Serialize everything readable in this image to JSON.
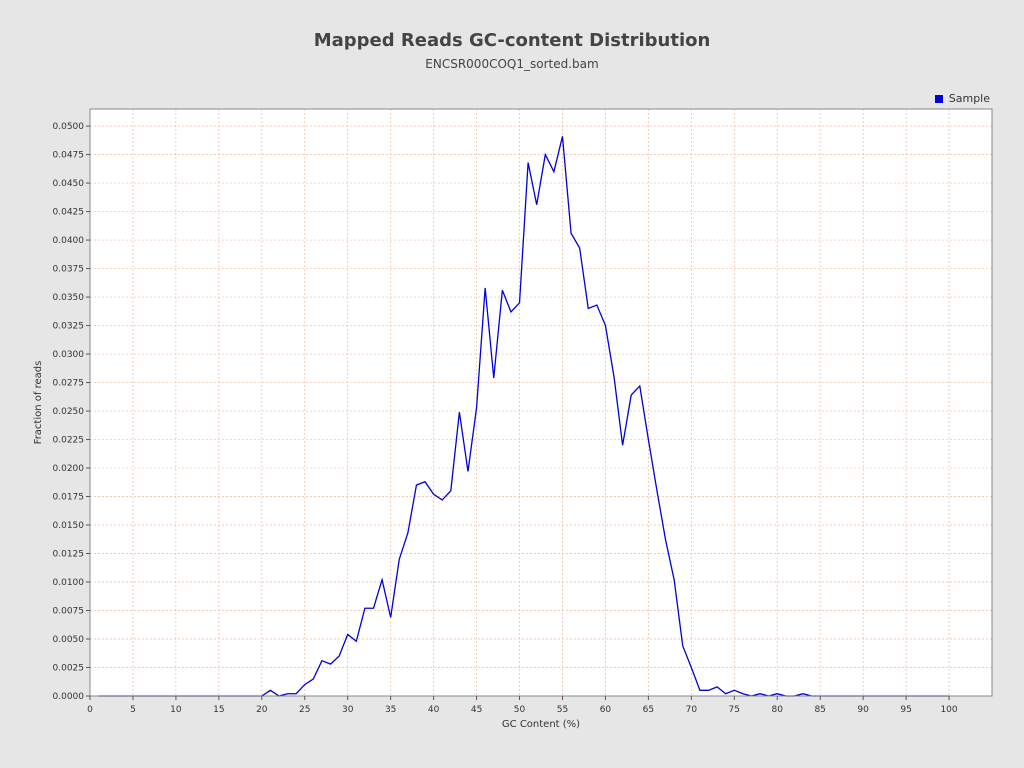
{
  "chart_data": {
    "type": "line",
    "title": "Mapped Reads GC-content Distribution",
    "subtitle": "ENCSR000COQ1_sorted.bam",
    "xlabel": "GC Content (%)",
    "ylabel": "Fraction of reads",
    "xlim": [
      0,
      105
    ],
    "ylim": [
      0,
      0.0515
    ],
    "xticks": [
      0,
      5,
      10,
      15,
      20,
      25,
      30,
      35,
      40,
      45,
      50,
      55,
      60,
      65,
      70,
      75,
      80,
      85,
      90,
      95,
      100
    ],
    "xtick_labels": [
      "0",
      "5",
      "10",
      "15",
      "20",
      "25",
      "30",
      "35",
      "40",
      "45",
      "50",
      "55",
      "60",
      "65",
      "70",
      "75",
      "80",
      "85",
      "90",
      "95",
      "100"
    ],
    "yticks": [
      0,
      0.0025,
      0.005,
      0.0075,
      0.01,
      0.0125,
      0.015,
      0.0175,
      0.02,
      0.0225,
      0.025,
      0.0275,
      0.03,
      0.0325,
      0.035,
      0.0375,
      0.04,
      0.0425,
      0.045,
      0.0475,
      0.05
    ],
    "ytick_labels": [
      "0.0000",
      "0.0025",
      "0.0050",
      "0.0075",
      "0.0100",
      "0.0125",
      "0.0150",
      "0.0175",
      "0.0200",
      "0.0225",
      "0.0250",
      "0.0275",
      "0.0300",
      "0.0325",
      "0.0350",
      "0.0375",
      "0.0400",
      "0.0425",
      "0.0450",
      "0.0475",
      "0.0500"
    ],
    "grid": true,
    "legend_position": "top-right",
    "series": [
      {
        "name": "Sample",
        "color": "#0000dd",
        "x": [
          1,
          2,
          3,
          4,
          5,
          6,
          7,
          8,
          9,
          10,
          11,
          12,
          13,
          14,
          15,
          16,
          17,
          18,
          19,
          20,
          21,
          22,
          23,
          24,
          25,
          26,
          27,
          28,
          29,
          30,
          31,
          32,
          33,
          34,
          35,
          36,
          37,
          38,
          39,
          40,
          41,
          42,
          43,
          44,
          45,
          46,
          47,
          48,
          49,
          50,
          51,
          52,
          53,
          54,
          55,
          56,
          57,
          58,
          59,
          60,
          61,
          62,
          63,
          64,
          65,
          66,
          67,
          68,
          69,
          70,
          71,
          72,
          73,
          74,
          75,
          76,
          77,
          78,
          79,
          80,
          81,
          82,
          83,
          84,
          85,
          86,
          87,
          88,
          89,
          90,
          91,
          92,
          93,
          94,
          95,
          96,
          97,
          98,
          99,
          100
        ],
        "y": [
          0,
          0,
          0,
          0,
          0,
          0,
          0,
          0,
          0,
          0,
          0,
          0,
          0,
          0,
          0,
          0,
          0,
          0,
          0,
          0,
          0.0005,
          0,
          0.0002,
          0.0002,
          0.001,
          0.0015,
          0.0031,
          0.0028,
          0.0035,
          0.0054,
          0.0048,
          0.0077,
          0.0077,
          0.0102,
          0.0069,
          0.012,
          0.0143,
          0.0185,
          0.0188,
          0.0177,
          0.0172,
          0.018,
          0.0249,
          0.0197,
          0.0253,
          0.0358,
          0.0279,
          0.0356,
          0.0337,
          0.0345,
          0.0468,
          0.0431,
          0.0475,
          0.046,
          0.0491,
          0.0406,
          0.0393,
          0.034,
          0.0343,
          0.0325,
          0.028,
          0.022,
          0.0264,
          0.0272,
          0.0225,
          0.018,
          0.0137,
          0.0102,
          0.0044,
          0.0025,
          0.0005,
          0.0005,
          0.0008,
          0.0002,
          0.0005,
          0.0002,
          0,
          0.0002,
          0,
          0.0002,
          0,
          0,
          0.0002,
          0,
          0,
          0,
          0,
          0,
          0,
          0,
          0,
          0,
          0,
          0,
          0,
          0,
          0,
          0,
          0,
          0
        ]
      }
    ]
  }
}
